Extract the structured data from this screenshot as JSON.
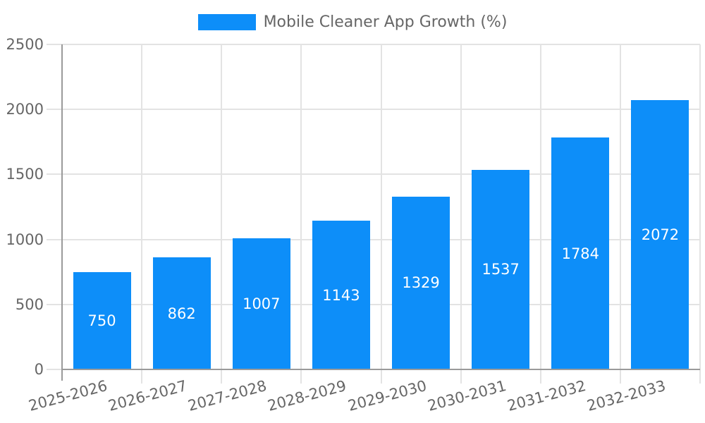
{
  "legend": {
    "label": "Mobile Cleaner App Growth (%)"
  },
  "chart_data": {
    "type": "bar",
    "title": "Mobile Cleaner App Growth (%)",
    "categories": [
      "2025-2026",
      "2026-2027",
      "2027-2028",
      "2028-2029",
      "2029-2030",
      "2030-2031",
      "2031-2032",
      "2032-2033"
    ],
    "series": [
      {
        "name": "Mobile Cleaner App Growth (%)",
        "values": [
          750,
          862,
          1007,
          1143,
          1329,
          1537,
          1784,
          2072
        ],
        "color": "#0d8ef9"
      }
    ],
    "value_labels": [
      "750",
      "862",
      "1007",
      "1143",
      "1329",
      "1537",
      "1784",
      "2072"
    ],
    "xlabel": "",
    "ylabel": "",
    "ylim": [
      0,
      2500
    ],
    "yticks": [
      0,
      500,
      1000,
      1500,
      2000,
      2500
    ],
    "ytick_labels": [
      "0",
      "500",
      "1000",
      "1500",
      "2000",
      "2500"
    ],
    "grid": true,
    "legend_position": "top",
    "colors": {
      "bar": "#0d8ef9",
      "grid": "#e3e3e3",
      "axis": "#9a9a9a",
      "tick_text": "#666666",
      "value_text": "#ffffff",
      "background": "#ffffff"
    }
  }
}
